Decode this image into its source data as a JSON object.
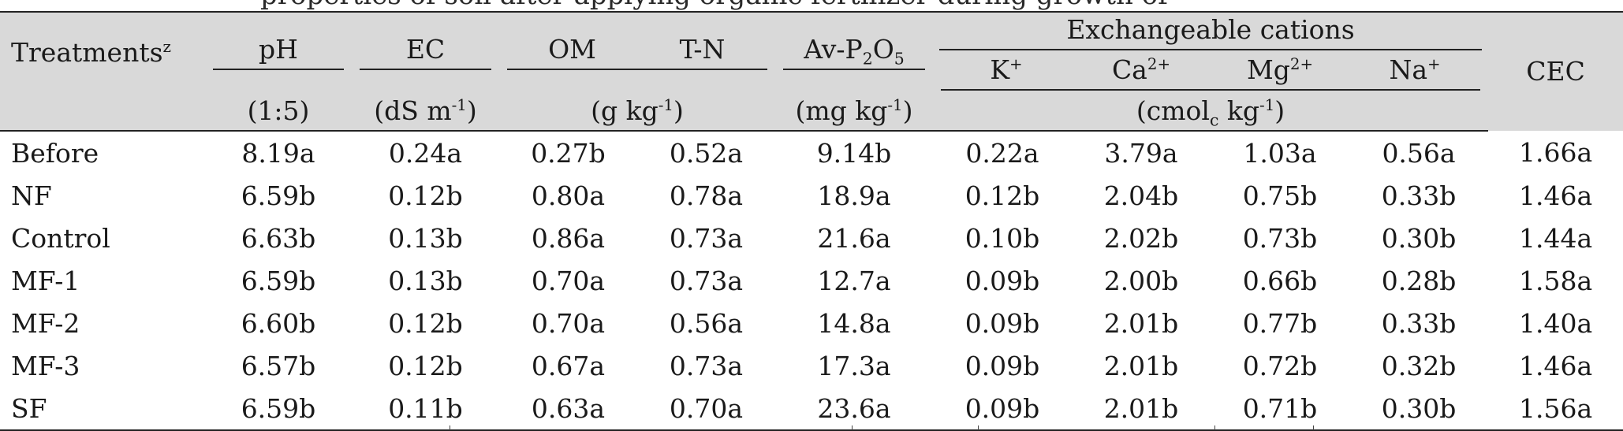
{
  "caption_fragment": "properties of soil after applying organic fertilizer during growth of",
  "header": {
    "treatments": "Treatments",
    "treatments_sup": "z",
    "ph": "pH",
    "ec": "EC",
    "om": "OM",
    "tn": "T-N",
    "avp": "Av-P",
    "avp_sub1": "2",
    "avp_mid": "O",
    "avp_sub2": "5",
    "exchangeable": "Exchangeable cations",
    "k": "K",
    "k_sup": "+",
    "ca": "Ca",
    "ca_sup": "2+",
    "mg": "Mg",
    "mg_sup": "2+",
    "na": "Na",
    "na_sup": "+",
    "cec": "CEC"
  },
  "units": {
    "ph": "(1:5)",
    "ec_a": "(dS m",
    "ec_sup": "-1",
    "ec_b": ")",
    "om_tn_a": "(g kg",
    "om_tn_sup": "-1",
    "om_tn_b": ")",
    "avp_a": "(mg kg",
    "avp_sup": "-1",
    "avp_b": ")",
    "cations_a": "(cmol",
    "cations_sub": "c",
    "cations_b": " kg",
    "cations_sup": "-1",
    "cations_c": ")"
  },
  "rows": [
    {
      "t": "Before",
      "ph": "8.19a",
      "ec": "0.24a",
      "om": "0.27b",
      "tn": "0.52a",
      "avp": "9.14b",
      "k": "0.22a",
      "ca": "3.79a",
      "mg": "1.03a",
      "na": "0.56a",
      "cec": "1.66a"
    },
    {
      "t": "NF",
      "ph": "6.59b",
      "ec": "0.12b",
      "om": "0.80a",
      "tn": "0.78a",
      "avp": "18.9a",
      "k": "0.12b",
      "ca": "2.04b",
      "mg": "0.75b",
      "na": "0.33b",
      "cec": "1.46a"
    },
    {
      "t": "Control",
      "ph": "6.63b",
      "ec": "0.13b",
      "om": "0.86a",
      "tn": "0.73a",
      "avp": "21.6a",
      "k": "0.10b",
      "ca": "2.02b",
      "mg": "0.73b",
      "na": "0.30b",
      "cec": "1.44a"
    },
    {
      "t": "MF-1",
      "ph": "6.59b",
      "ec": "0.13b",
      "om": "0.70a",
      "tn": "0.73a",
      "avp": "12.7a",
      "k": "0.09b",
      "ca": "2.00b",
      "mg": "0.66b",
      "na": "0.28b",
      "cec": "1.58a"
    },
    {
      "t": "MF-2",
      "ph": "6.60b",
      "ec": "0.12b",
      "om": "0.70a",
      "tn": "0.56a",
      "avp": "14.8a",
      "k": "0.09b",
      "ca": "2.01b",
      "mg": "0.77b",
      "na": "0.33b",
      "cec": "1.40a"
    },
    {
      "t": "MF-3",
      "ph": "6.57b",
      "ec": "0.12b",
      "om": "0.67a",
      "tn": "0.73a",
      "avp": "17.3a",
      "k": "0.09b",
      "ca": "2.01b",
      "mg": "0.72b",
      "na": "0.32b",
      "cec": "1.46a"
    },
    {
      "t": "SF",
      "ph": "6.59b",
      "ec": "0.11b",
      "om": "0.63a",
      "tn": "0.70a",
      "avp": "23.6a",
      "k": "0.09b",
      "ca": "2.01b",
      "mg": "0.71b",
      "na": "0.30b",
      "cec": "1.56a"
    }
  ]
}
